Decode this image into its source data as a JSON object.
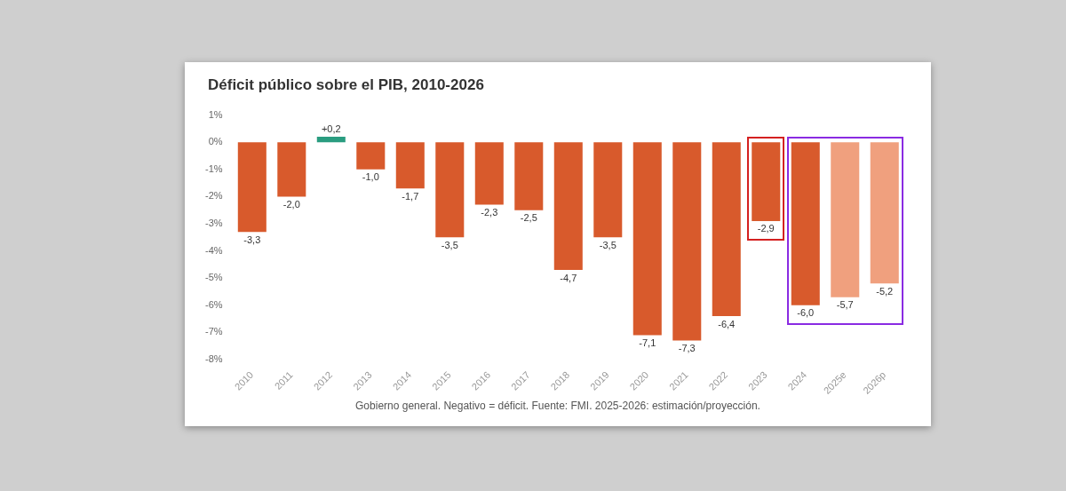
{
  "chart_data": {
    "type": "bar",
    "title": "Déficit público sobre el PIB, 2010-2026",
    "categories": [
      "2010",
      "2011",
      "2012",
      "2013",
      "2014",
      "2015",
      "2016",
      "2017",
      "2018",
      "2019",
      "2020",
      "2021",
      "2022",
      "2023",
      "2024",
      "2025e",
      "2026p"
    ],
    "values": [
      -3.3,
      -2.0,
      0.2,
      -1.0,
      -1.7,
      -3.5,
      -2.3,
      -2.5,
      -4.7,
      -3.5,
      -7.1,
      -7.3,
      -6.4,
      -2.9,
      -6.0,
      -5.7,
      -5.2
    ],
    "colors": [
      "#d85a2c",
      "#d85a2c",
      "#2a9d80",
      "#d85a2c",
      "#d85a2c",
      "#d85a2c",
      "#d85a2c",
      "#d85a2c",
      "#d85a2c",
      "#d85a2c",
      "#d85a2c",
      "#d85a2c",
      "#d85a2c",
      "#d85a2c",
      "#d85a2c",
      "#f0a07e",
      "#f0a07e"
    ],
    "value_labels": [
      "-3,3",
      "-2,0",
      "+0,2",
      "-1,0",
      "-1,7",
      "-3,5",
      "-2,3",
      "-2,5",
      "-4,7",
      "-3,5",
      "-7,1",
      "-7,3",
      "-6,4",
      "-2,9",
      "-6,0",
      "-5,7",
      "-5,2"
    ],
    "ylim": [
      -8,
      1
    ],
    "yticks": [
      {
        "value": 1,
        "label": "1%"
      },
      {
        "value": 0,
        "label": "0%"
      },
      {
        "value": -1,
        "label": "-1%"
      },
      {
        "value": -2,
        "label": "-2%"
      },
      {
        "value": -3,
        "label": "-3%"
      },
      {
        "value": -4,
        "label": "-4%"
      },
      {
        "value": -5,
        "label": "-5%"
      },
      {
        "value": -6,
        "label": "-6%"
      },
      {
        "value": -7,
        "label": "-7%"
      },
      {
        "value": -8,
        "label": "-8%"
      }
    ],
    "annotations": [
      "Gobierno general. Negativo = déficit. Fuente: FMI. 2025-2026: estimación/proyección."
    ]
  }
}
